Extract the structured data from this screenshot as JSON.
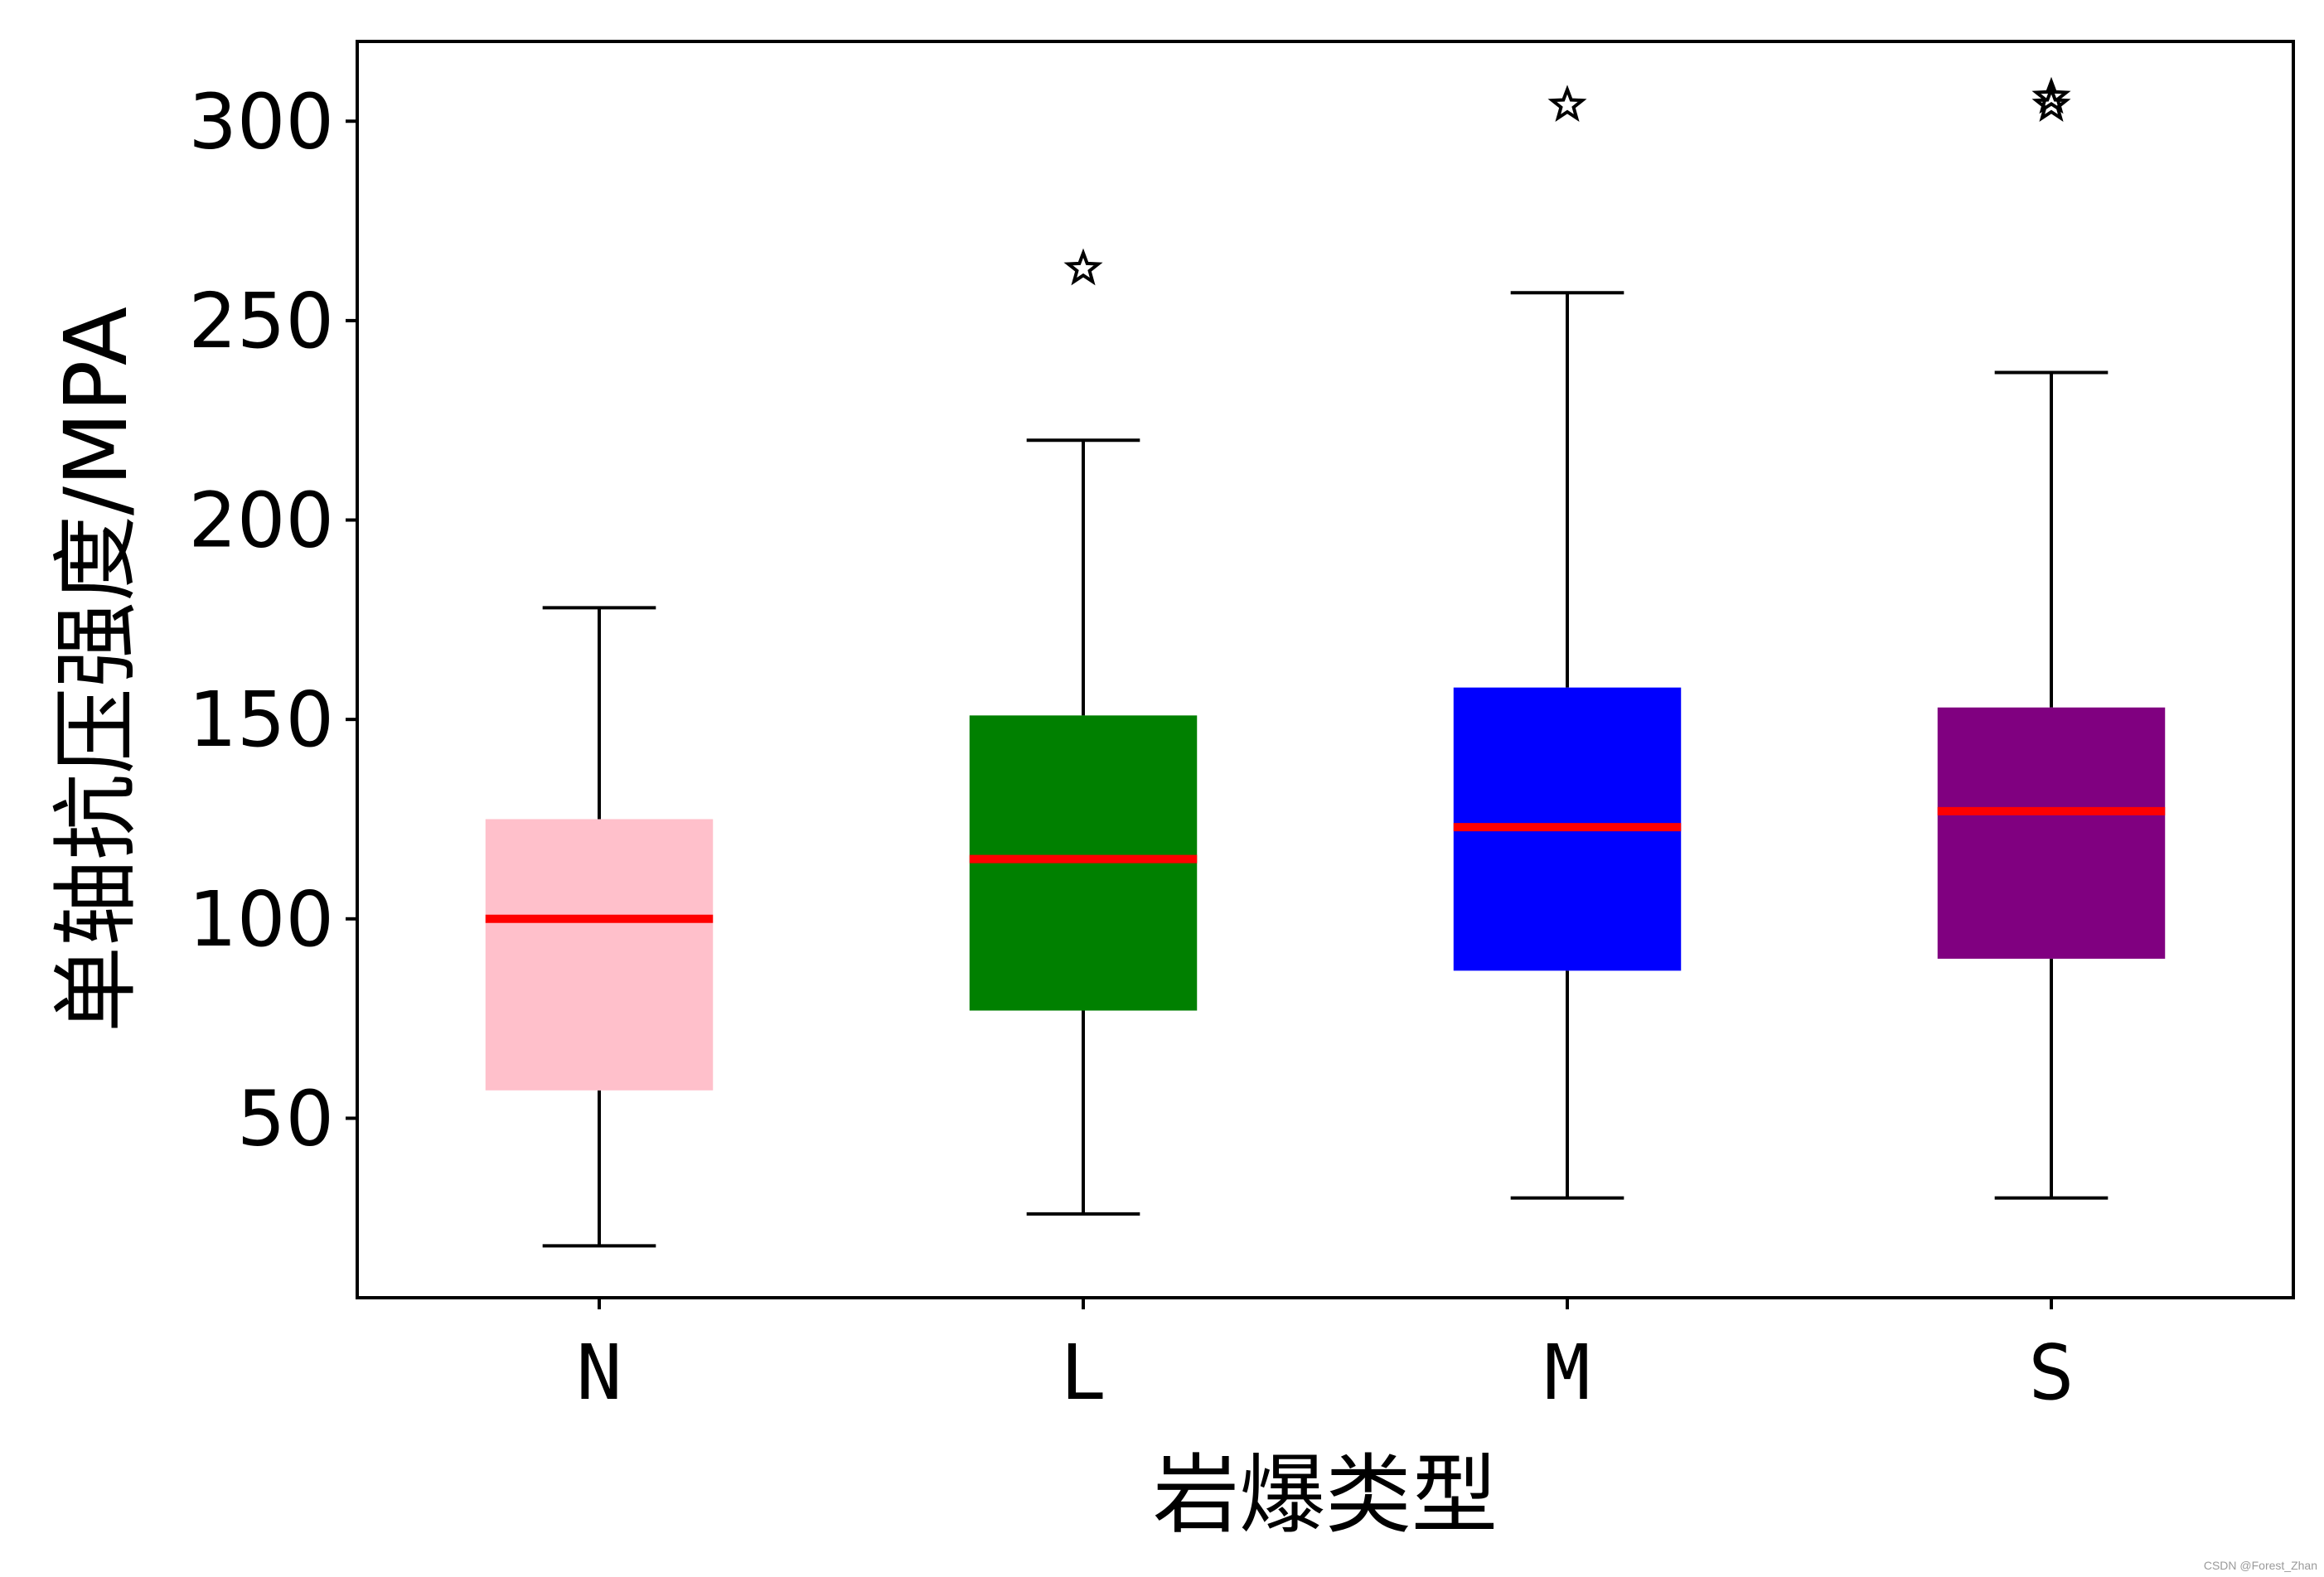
{
  "chart_data": {
    "type": "box",
    "xlabel": "岩爆类型",
    "ylabel": "单轴抗压强度/MPA",
    "ylim": [
      5,
      320
    ],
    "yticks": [
      50,
      100,
      150,
      200,
      250,
      300
    ],
    "grid": false,
    "categories": [
      "N",
      "L",
      "M",
      "S"
    ],
    "boxes": [
      {
        "category": "N",
        "whisker_low": 18,
        "q1": 57,
        "median": 100,
        "q3": 125,
        "whisker_high": 178,
        "outliers": [],
        "color": "#ffc0cb"
      },
      {
        "category": "L",
        "whisker_low": 26,
        "q1": 77,
        "median": 115,
        "q3": 151,
        "whisker_high": 220,
        "outliers": [
          263
        ],
        "color": "#008000"
      },
      {
        "category": "M",
        "whisker_low": 30,
        "q1": 87,
        "median": 123,
        "q3": 158,
        "whisker_high": 257,
        "outliers": [
          304
        ],
        "color": "#0000ff"
      },
      {
        "category": "S",
        "whisker_low": 30,
        "q1": 90,
        "median": 127,
        "q3": 153,
        "whisker_high": 237,
        "outliers": [
          304,
          306
        ],
        "color": "#800080"
      }
    ],
    "median_color": "#ff0000"
  },
  "watermark": "CSDN @Forest_Zhan"
}
